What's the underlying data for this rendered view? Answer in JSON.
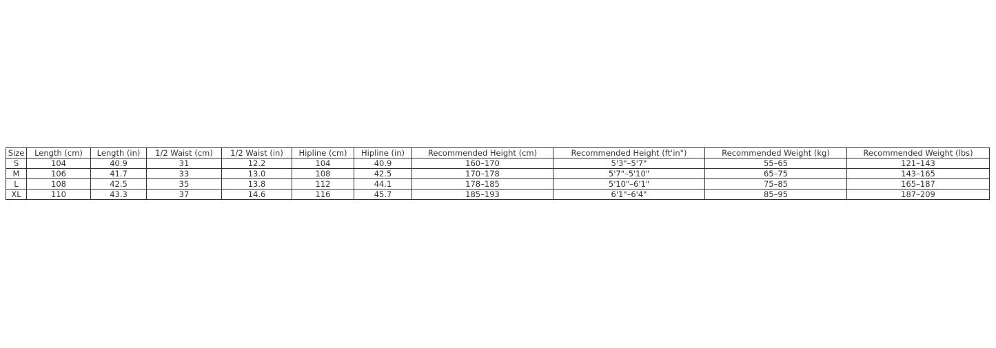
{
  "table": {
    "name": "size-chart",
    "columns": [
      "Size",
      "Length (cm)",
      "Length (in)",
      "1/2 Waist (cm)",
      "1/2 Waist (in)",
      "Hipline (cm)",
      "Hipline (in)",
      "Recommended Height (cm)",
      "Recommended Height (ft'in\")",
      "Recommended Weight (kg)",
      "Recommended Weight (lbs)"
    ],
    "rows": [
      [
        "S",
        "104",
        "40.9",
        "31",
        "12.2",
        "104",
        "40.9",
        "160–170",
        "5'3\"–5'7\"",
        "55–65",
        "121–143"
      ],
      [
        "M",
        "106",
        "41.7",
        "33",
        "13.0",
        "108",
        "42.5",
        "170–178",
        "5'7\"–5'10\"",
        "65–75",
        "143–165"
      ],
      [
        "L",
        "108",
        "42.5",
        "35",
        "13.8",
        "112",
        "44.1",
        "178–185",
        "5'10\"–6'1\"",
        "75–85",
        "165–187"
      ],
      [
        "XL",
        "110",
        "43.3",
        "37",
        "14.6",
        "116",
        "45.7",
        "185–193",
        "6'1\"–6'4\"",
        "85–95",
        "187–209"
      ]
    ]
  }
}
